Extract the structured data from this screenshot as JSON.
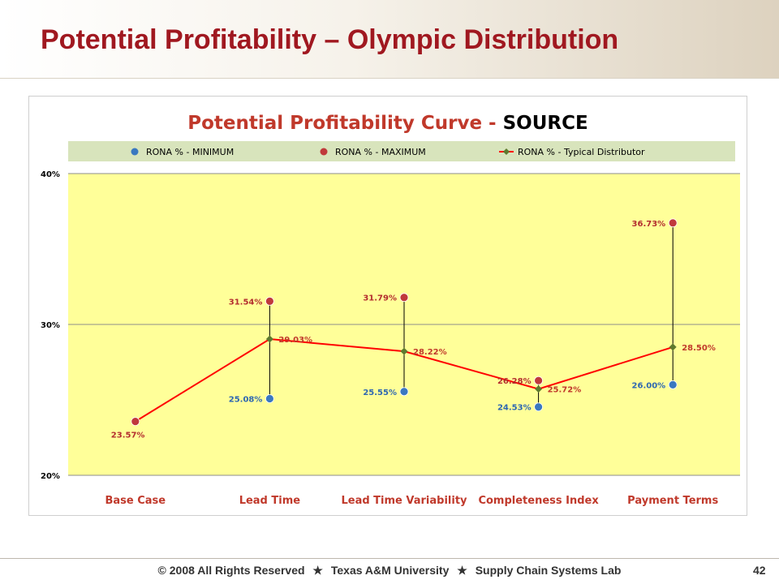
{
  "slide": {
    "title": "Potential Profitability – Olympic Distribution",
    "footer": {
      "copyright": "© 2008 All Rights Reserved",
      "university": "Texas A&M University",
      "lab": "Supply Chain Systems Lab",
      "page_number": "42"
    }
  },
  "colors": {
    "title": "#a01820",
    "plot_background": "#ffff99",
    "legend_background": "#d8e4bc",
    "minimum": "#3a78c0",
    "maximum": "#c0393b",
    "typical_line": "#ff0000",
    "typical_marker": "#5e7a2e",
    "label_text_min": "#2e67b1",
    "label_text_max": "#b32d2e",
    "label_text_typical": "#c0392b",
    "category_text": "#c0392b"
  },
  "chart_data": {
    "type": "line",
    "title": "Potential Profitability Curve - ",
    "title_suffix": "SOURCE",
    "categories": [
      "Base Case",
      "Lead Time",
      "Lead Time Variability",
      "Completeness Index",
      "Payment Terms"
    ],
    "series": [
      {
        "name": "RONA % - MINIMUM",
        "marker": "circle",
        "values": [
          null,
          25.08,
          25.55,
          24.53,
          26.0
        ],
        "labels": [
          "",
          "25.08%",
          "25.55%",
          "24.53%",
          "26.00%"
        ]
      },
      {
        "name": "RONA % - MAXIMUM",
        "marker": "circle",
        "values": [
          23.57,
          31.54,
          31.79,
          26.28,
          36.73
        ],
        "labels": [
          "23.57%",
          "31.54%",
          "31.79%",
          "26.28%",
          "36.73%"
        ]
      },
      {
        "name": "RONA % - Typical Distributor",
        "marker": "diamond-line",
        "values": [
          23.57,
          29.03,
          28.22,
          25.72,
          28.5
        ],
        "labels": [
          "",
          "29.03%",
          "28.22%",
          "25.72%",
          "28.50%"
        ]
      }
    ],
    "ylim": [
      20,
      40
    ],
    "yticks": [
      20,
      30,
      40
    ],
    "ytick_labels": [
      "20%",
      "30%",
      "40%"
    ],
    "grid": true,
    "legend_position": "top",
    "high_low_lines": true
  }
}
